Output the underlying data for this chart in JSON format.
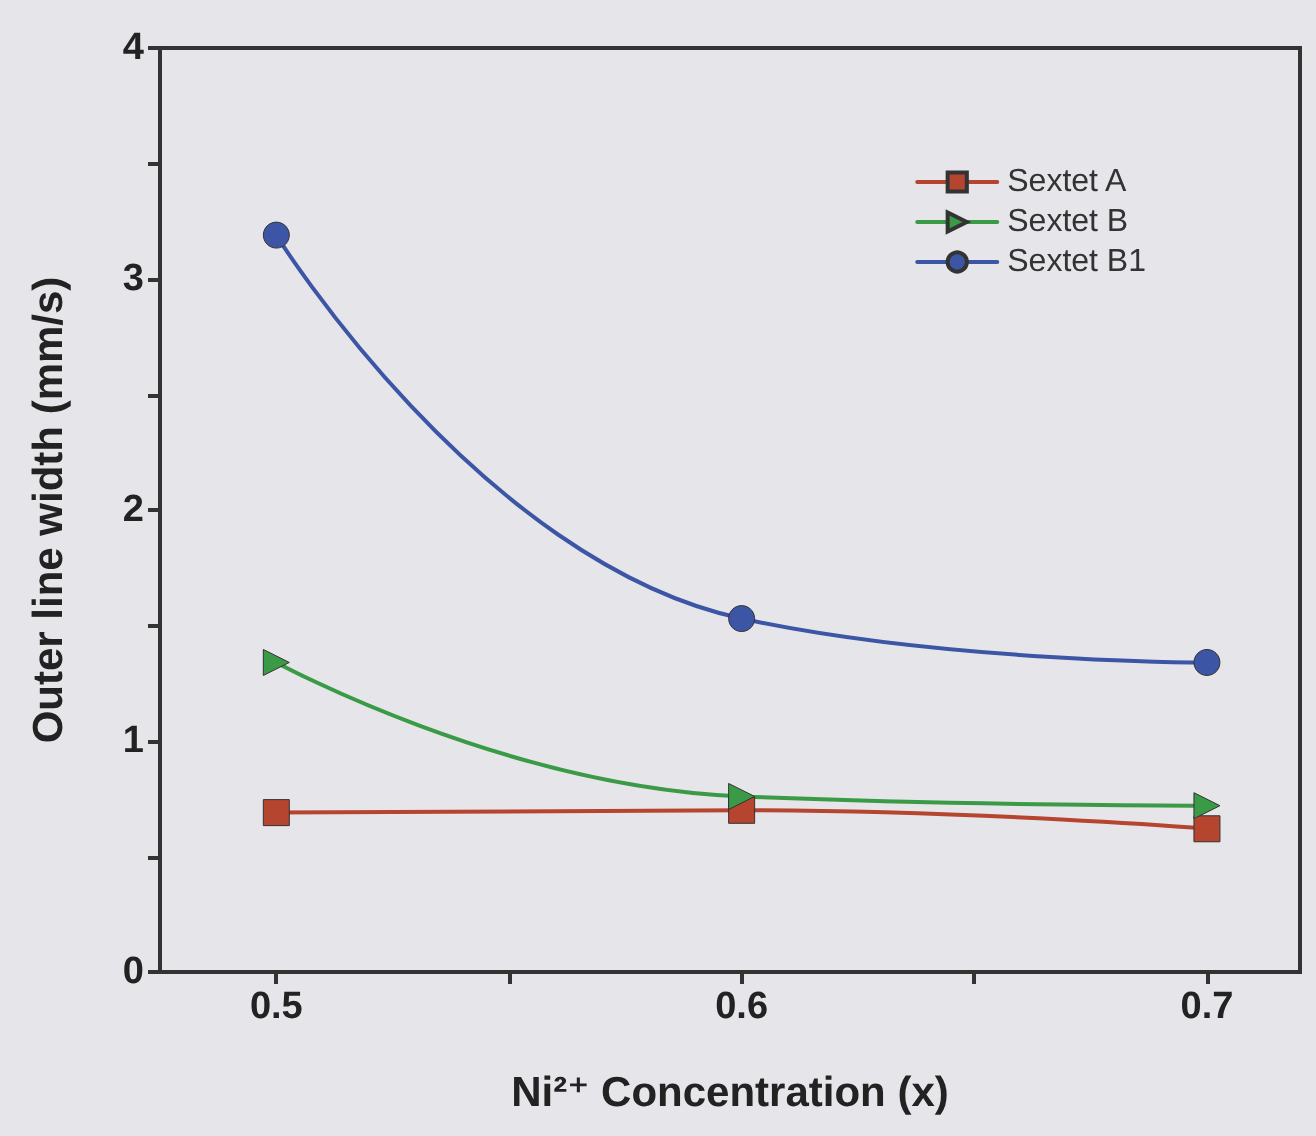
{
  "chart_data": {
    "type": "line",
    "xlabel": "Ni²⁺ Concentration (x)",
    "ylabel": "Outer line width (mm/s)",
    "x": [
      0.5,
      0.6,
      0.7
    ],
    "series": [
      {
        "name": "Sextet A",
        "color": "#b5452f",
        "marker": "square",
        "values": [
          0.69,
          0.7,
          0.62
        ]
      },
      {
        "name": "Sextet B",
        "color": "#3a9a45",
        "marker": "triangle",
        "values": [
          1.34,
          0.76,
          0.72
        ]
      },
      {
        "name": "Sextet B1",
        "color": "#3c55a5",
        "marker": "circle",
        "values": [
          3.19,
          1.53,
          1.34
        ]
      }
    ],
    "xlim": [
      0.475,
      0.72
    ],
    "xticks": [
      0.5,
      {
        "value": 0.55,
        "label": null
      },
      0.6,
      {
        "value": 0.65,
        "label": null
      },
      0.7
    ],
    "ylim": [
      0,
      4
    ],
    "yticks": [
      0,
      {
        "value": 0.5,
        "label": null
      },
      1,
      {
        "value": 1.5,
        "label": null
      },
      2,
      {
        "value": 2.5,
        "label": null
      },
      3,
      {
        "value": 3.5,
        "label": null
      },
      4
    ],
    "grid": false,
    "legend": "top right",
    "line_style": "solid"
  }
}
